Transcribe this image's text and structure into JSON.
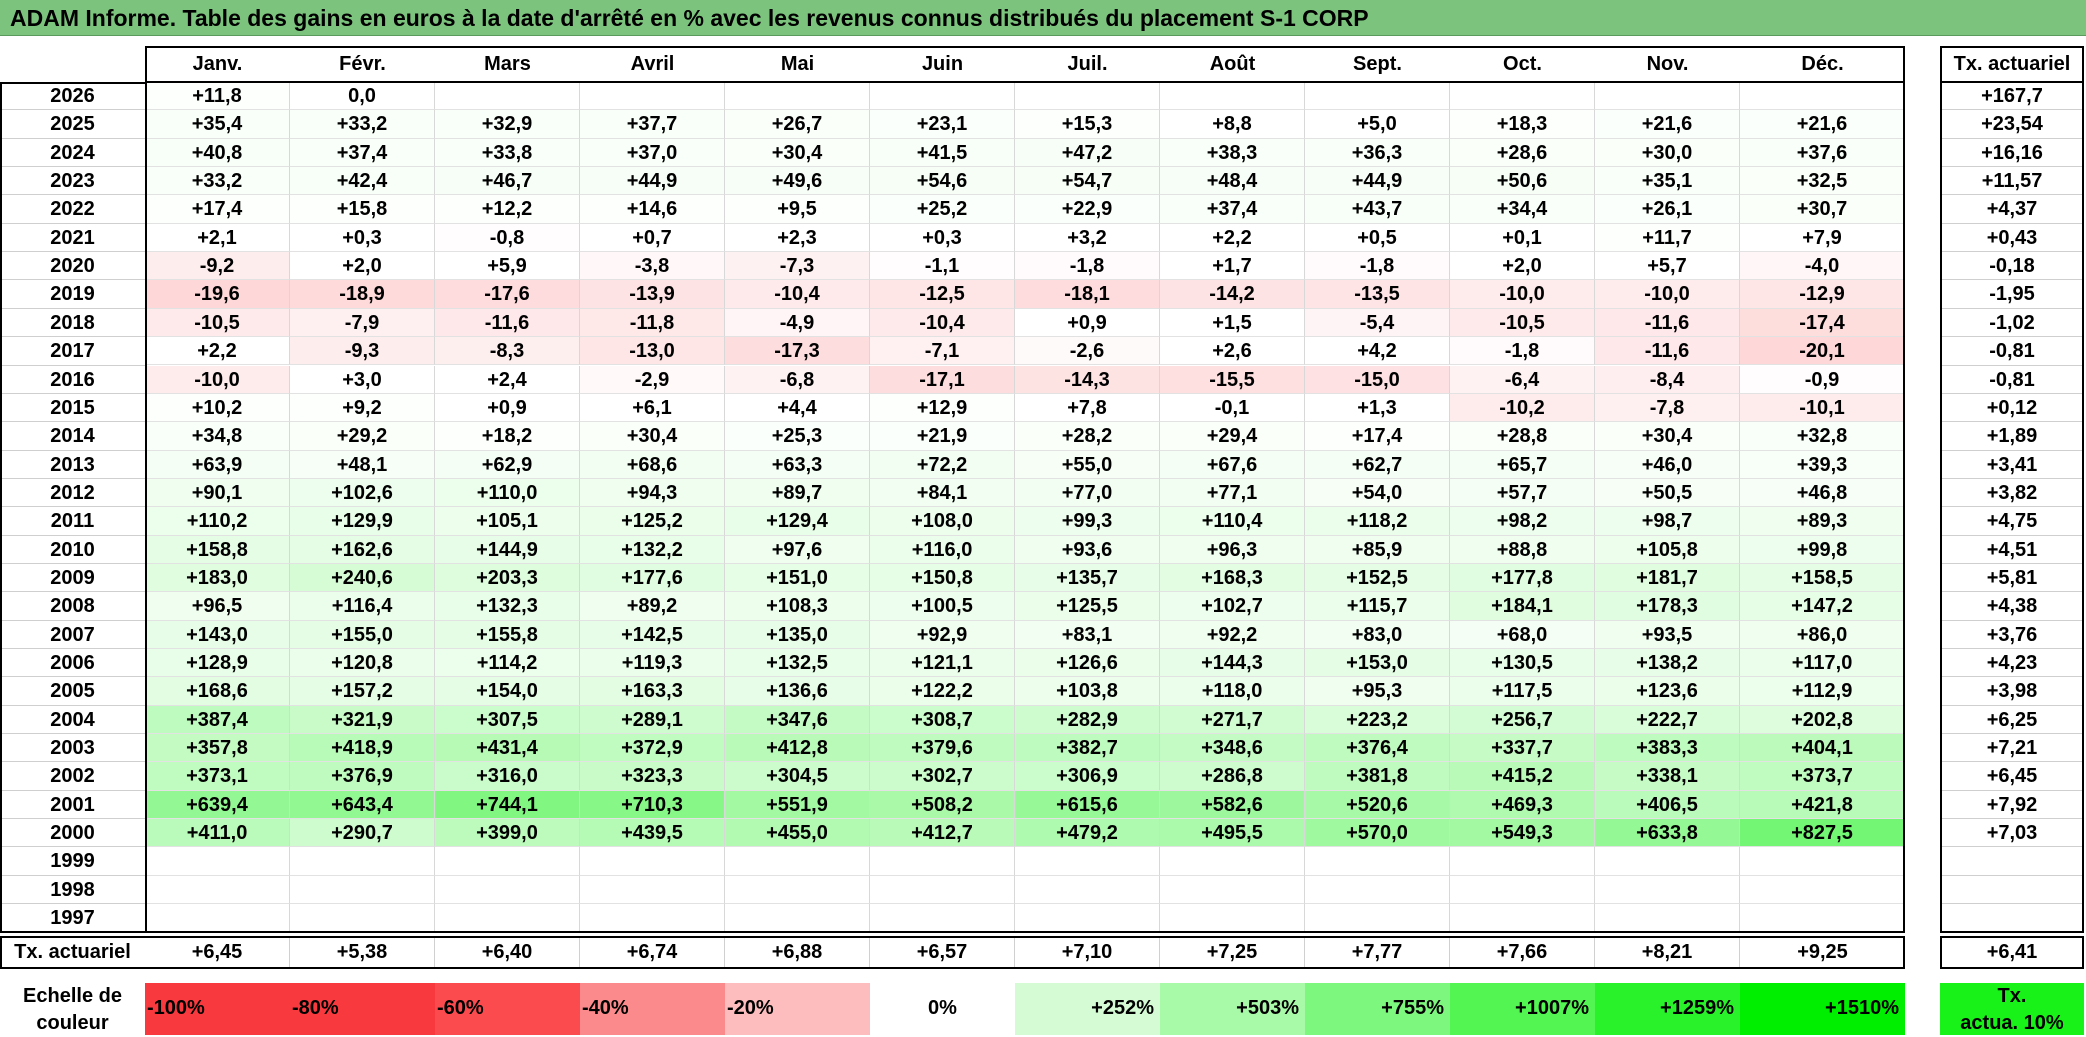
{
  "title": "ADAM Informe. Table des gains en euros à la date d'arrêté en % avec les revenus connus distribués du placement S-1 CORP",
  "months": [
    "Janv.",
    "Févr.",
    "Mars",
    "Avril",
    "Mai",
    "Juin",
    "Juil.",
    "Août",
    "Sept.",
    "Oct.",
    "Nov.",
    "Déc."
  ],
  "right_header": "Tx. actuariel",
  "rows": [
    {
      "year": "2026",
      "values": [
        "+11,8",
        "0,0",
        "",
        "",
        "",
        "",
        "",
        "",
        "",
        "",
        "",
        ""
      ],
      "rate": "+167,7"
    },
    {
      "year": "2025",
      "values": [
        "+35,4",
        "+33,2",
        "+32,9",
        "+37,7",
        "+26,7",
        "+23,1",
        "+15,3",
        "+8,8",
        "+5,0",
        "+18,3",
        "+21,6",
        "+21,6"
      ],
      "rate": "+23,54"
    },
    {
      "year": "2024",
      "values": [
        "+40,8",
        "+37,4",
        "+33,8",
        "+37,0",
        "+30,4",
        "+41,5",
        "+47,2",
        "+38,3",
        "+36,3",
        "+28,6",
        "+30,0",
        "+37,6"
      ],
      "rate": "+16,16"
    },
    {
      "year": "2023",
      "values": [
        "+33,2",
        "+42,4",
        "+46,7",
        "+44,9",
        "+49,6",
        "+54,6",
        "+54,7",
        "+48,4",
        "+44,9",
        "+50,6",
        "+35,1",
        "+32,5"
      ],
      "rate": "+11,57"
    },
    {
      "year": "2022",
      "values": [
        "+17,4",
        "+15,8",
        "+12,2",
        "+14,6",
        "+9,5",
        "+25,2",
        "+22,9",
        "+37,4",
        "+43,7",
        "+34,4",
        "+26,1",
        "+30,7"
      ],
      "rate": "+4,37"
    },
    {
      "year": "2021",
      "values": [
        "+2,1",
        "+0,3",
        "-0,8",
        "+0,7",
        "+2,3",
        "+0,3",
        "+3,2",
        "+2,2",
        "+0,5",
        "+0,1",
        "+11,7",
        "+7,9"
      ],
      "rate": "+0,43"
    },
    {
      "year": "2020",
      "values": [
        "-9,2",
        "+2,0",
        "+5,9",
        "-3,8",
        "-7,3",
        "-1,1",
        "-1,8",
        "+1,7",
        "-1,8",
        "+2,0",
        "+5,7",
        "-4,0"
      ],
      "rate": "-0,18"
    },
    {
      "year": "2019",
      "values": [
        "-19,6",
        "-18,9",
        "-17,6",
        "-13,9",
        "-10,4",
        "-12,5",
        "-18,1",
        "-14,2",
        "-13,5",
        "-10,0",
        "-10,0",
        "-12,9"
      ],
      "rate": "-1,95"
    },
    {
      "year": "2018",
      "values": [
        "-10,5",
        "-7,9",
        "-11,6",
        "-11,8",
        "-4,9",
        "-10,4",
        "+0,9",
        "+1,5",
        "-5,4",
        "-10,5",
        "-11,6",
        "-17,4"
      ],
      "rate": "-1,02"
    },
    {
      "year": "2017",
      "values": [
        "+2,2",
        "-9,3",
        "-8,3",
        "-13,0",
        "-17,3",
        "-7,1",
        "-2,6",
        "+2,6",
        "+4,2",
        "-1,8",
        "-11,6",
        "-20,1"
      ],
      "rate": "-0,81"
    },
    {
      "year": "2016",
      "values": [
        "-10,0",
        "+3,0",
        "+2,4",
        "-2,9",
        "-6,8",
        "-17,1",
        "-14,3",
        "-15,5",
        "-15,0",
        "-6,4",
        "-8,4",
        "-0,9"
      ],
      "rate": "-0,81"
    },
    {
      "year": "2015",
      "values": [
        "+10,2",
        "+9,2",
        "+0,9",
        "+6,1",
        "+4,4",
        "+12,9",
        "+7,8",
        "-0,1",
        "+1,3",
        "-10,2",
        "-7,8",
        "-10,1"
      ],
      "rate": "+0,12"
    },
    {
      "year": "2014",
      "values": [
        "+34,8",
        "+29,2",
        "+18,2",
        "+30,4",
        "+25,3",
        "+21,9",
        "+28,2",
        "+29,4",
        "+17,4",
        "+28,8",
        "+30,4",
        "+32,8"
      ],
      "rate": "+1,89"
    },
    {
      "year": "2013",
      "values": [
        "+63,9",
        "+48,1",
        "+62,9",
        "+68,6",
        "+63,3",
        "+72,2",
        "+55,0",
        "+67,6",
        "+62,7",
        "+65,7",
        "+46,0",
        "+39,3"
      ],
      "rate": "+3,41"
    },
    {
      "year": "2012",
      "values": [
        "+90,1",
        "+102,6",
        "+110,0",
        "+94,3",
        "+89,7",
        "+84,1",
        "+77,0",
        "+77,1",
        "+54,0",
        "+57,7",
        "+50,5",
        "+46,8"
      ],
      "rate": "+3,82"
    },
    {
      "year": "2011",
      "values": [
        "+110,2",
        "+129,9",
        "+105,1",
        "+125,2",
        "+129,4",
        "+108,0",
        "+99,3",
        "+110,4",
        "+118,2",
        "+98,2",
        "+98,7",
        "+89,3"
      ],
      "rate": "+4,75"
    },
    {
      "year": "2010",
      "values": [
        "+158,8",
        "+162,6",
        "+144,9",
        "+132,2",
        "+97,6",
        "+116,0",
        "+93,6",
        "+96,3",
        "+85,9",
        "+88,8",
        "+105,8",
        "+99,8"
      ],
      "rate": "+4,51"
    },
    {
      "year": "2009",
      "values": [
        "+183,0",
        "+240,6",
        "+203,3",
        "+177,6",
        "+151,0",
        "+150,8",
        "+135,7",
        "+168,3",
        "+152,5",
        "+177,8",
        "+181,7",
        "+158,5"
      ],
      "rate": "+5,81"
    },
    {
      "year": "2008",
      "values": [
        "+96,5",
        "+116,4",
        "+132,3",
        "+89,2",
        "+108,3",
        "+100,5",
        "+125,5",
        "+102,7",
        "+115,7",
        "+184,1",
        "+178,3",
        "+147,2"
      ],
      "rate": "+4,38"
    },
    {
      "year": "2007",
      "values": [
        "+143,0",
        "+155,0",
        "+155,8",
        "+142,5",
        "+135,0",
        "+92,9",
        "+83,1",
        "+92,2",
        "+83,0",
        "+68,0",
        "+93,5",
        "+86,0"
      ],
      "rate": "+3,76"
    },
    {
      "year": "2006",
      "values": [
        "+128,9",
        "+120,8",
        "+114,2",
        "+119,3",
        "+132,5",
        "+121,1",
        "+126,6",
        "+144,3",
        "+153,0",
        "+130,5",
        "+138,2",
        "+117,0"
      ],
      "rate": "+4,23"
    },
    {
      "year": "2005",
      "values": [
        "+168,6",
        "+157,2",
        "+154,0",
        "+163,3",
        "+136,6",
        "+122,2",
        "+103,8",
        "+118,0",
        "+95,3",
        "+117,5",
        "+123,6",
        "+112,9"
      ],
      "rate": "+3,98"
    },
    {
      "year": "2004",
      "values": [
        "+387,4",
        "+321,9",
        "+307,5",
        "+289,1",
        "+347,6",
        "+308,7",
        "+282,9",
        "+271,7",
        "+223,2",
        "+256,7",
        "+222,7",
        "+202,8"
      ],
      "rate": "+6,25"
    },
    {
      "year": "2003",
      "values": [
        "+357,8",
        "+418,9",
        "+431,4",
        "+372,9",
        "+412,8",
        "+379,6",
        "+382,7",
        "+348,6",
        "+376,4",
        "+337,7",
        "+383,3",
        "+404,1"
      ],
      "rate": "+7,21"
    },
    {
      "year": "2002",
      "values": [
        "+373,1",
        "+376,9",
        "+316,0",
        "+323,3",
        "+304,5",
        "+302,7",
        "+306,9",
        "+286,8",
        "+381,8",
        "+415,2",
        "+338,1",
        "+373,7"
      ],
      "rate": "+6,45"
    },
    {
      "year": "2001",
      "values": [
        "+639,4",
        "+643,4",
        "+744,1",
        "+710,3",
        "+551,9",
        "+508,2",
        "+615,6",
        "+582,6",
        "+520,6",
        "+469,3",
        "+406,5",
        "+421,8"
      ],
      "rate": "+7,92"
    },
    {
      "year": "2000",
      "values": [
        "+411,0",
        "+290,7",
        "+399,0",
        "+439,5",
        "+455,0",
        "+412,7",
        "+479,2",
        "+495,5",
        "+570,0",
        "+549,3",
        "+633,8",
        "+827,5"
      ],
      "rate": "+7,03"
    },
    {
      "year": "1999",
      "values": [
        "",
        "",
        "",
        "",
        "",
        "",
        "",
        "",
        "",
        "",
        "",
        ""
      ],
      "rate": ""
    },
    {
      "year": "1998",
      "values": [
        "",
        "",
        "",
        "",
        "",
        "",
        "",
        "",
        "",
        "",
        "",
        ""
      ],
      "rate": ""
    },
    {
      "year": "1997",
      "values": [
        "",
        "",
        "",
        "",
        "",
        "",
        "",
        "",
        "",
        "",
        "",
        ""
      ],
      "rate": ""
    }
  ],
  "footer": {
    "label": "Tx. actuariel",
    "values": [
      "+6,45",
      "+5,38",
      "+6,40",
      "+6,74",
      "+6,88",
      "+6,57",
      "+7,10",
      "+7,25",
      "+7,77",
      "+7,66",
      "+8,21",
      "+9,25"
    ],
    "rate": "+6,41"
  },
  "scale": {
    "label_line1": "Echelle de",
    "label_line2": "couleur",
    "steps": [
      {
        "text": "-100%",
        "color": "#f8393e",
        "align": "left"
      },
      {
        "text": "-80%",
        "color": "#f8393e",
        "align": "left"
      },
      {
        "text": "-60%",
        "color": "#fb4b4f",
        "align": "left"
      },
      {
        "text": "-40%",
        "color": "#fb8a8c",
        "align": "left"
      },
      {
        "text": "-20%",
        "color": "#fdbcbd",
        "align": "left"
      },
      {
        "text": "0%",
        "color": "#ffffff",
        "align": "center"
      },
      {
        "text": "+252%",
        "color": "#d4fbd4",
        "align": "right"
      },
      {
        "text": "+503%",
        "color": "#a8f9a8",
        "align": "right"
      },
      {
        "text": "+755%",
        "color": "#7ef77e",
        "align": "right"
      },
      {
        "text": "+1007%",
        "color": "#52f552",
        "align": "right"
      },
      {
        "text": "+1259%",
        "color": "#2af22a",
        "align": "right"
      },
      {
        "text": "+1510%",
        "color": "#00ee00",
        "align": "right"
      }
    ],
    "right_line1": "Tx.",
    "right_line2": "actua. 10%",
    "right_color": "#19f219"
  },
  "colors": {
    "title_bg": "#7cc47e",
    "positive_max": "#00ee00",
    "negative_max": "#f8393e"
  }
}
